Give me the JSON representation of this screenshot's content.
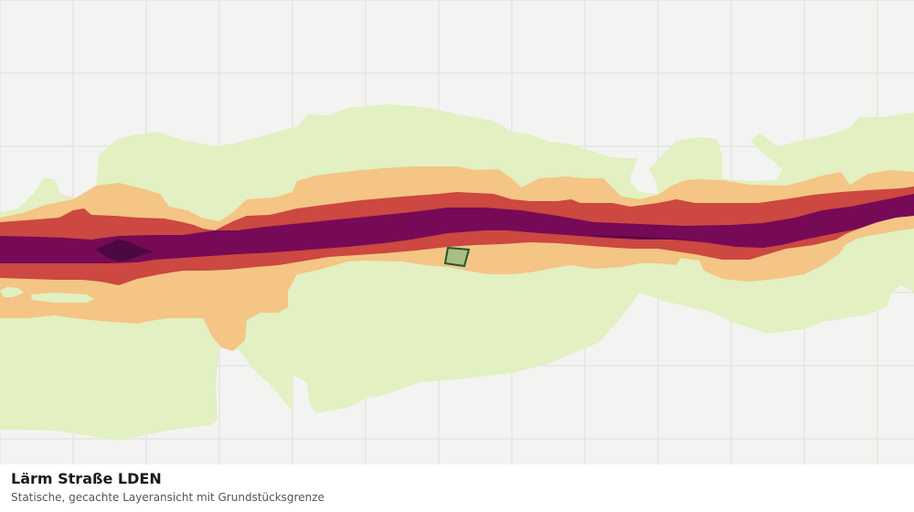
{
  "caption": {
    "title": "Lärm Straße LDEN",
    "subtitle": "Statische, gecachte Layeransicht mit Grundstücksgrenze"
  },
  "map": {
    "background_color": "#f3f4f2",
    "grid_color": "#dcdedb",
    "noise_bands": [
      {
        "level": 1,
        "color": "#e2f0c2"
      },
      {
        "level": 2,
        "color": "#f4c585"
      },
      {
        "level": 3,
        "color": "#cc4840"
      },
      {
        "level": 4,
        "color": "#760a57"
      },
      {
        "level": 5,
        "color": "#4c0840"
      }
    ],
    "parcel": {
      "fill": "#a8bf84",
      "stroke": "#1f5a26"
    }
  }
}
